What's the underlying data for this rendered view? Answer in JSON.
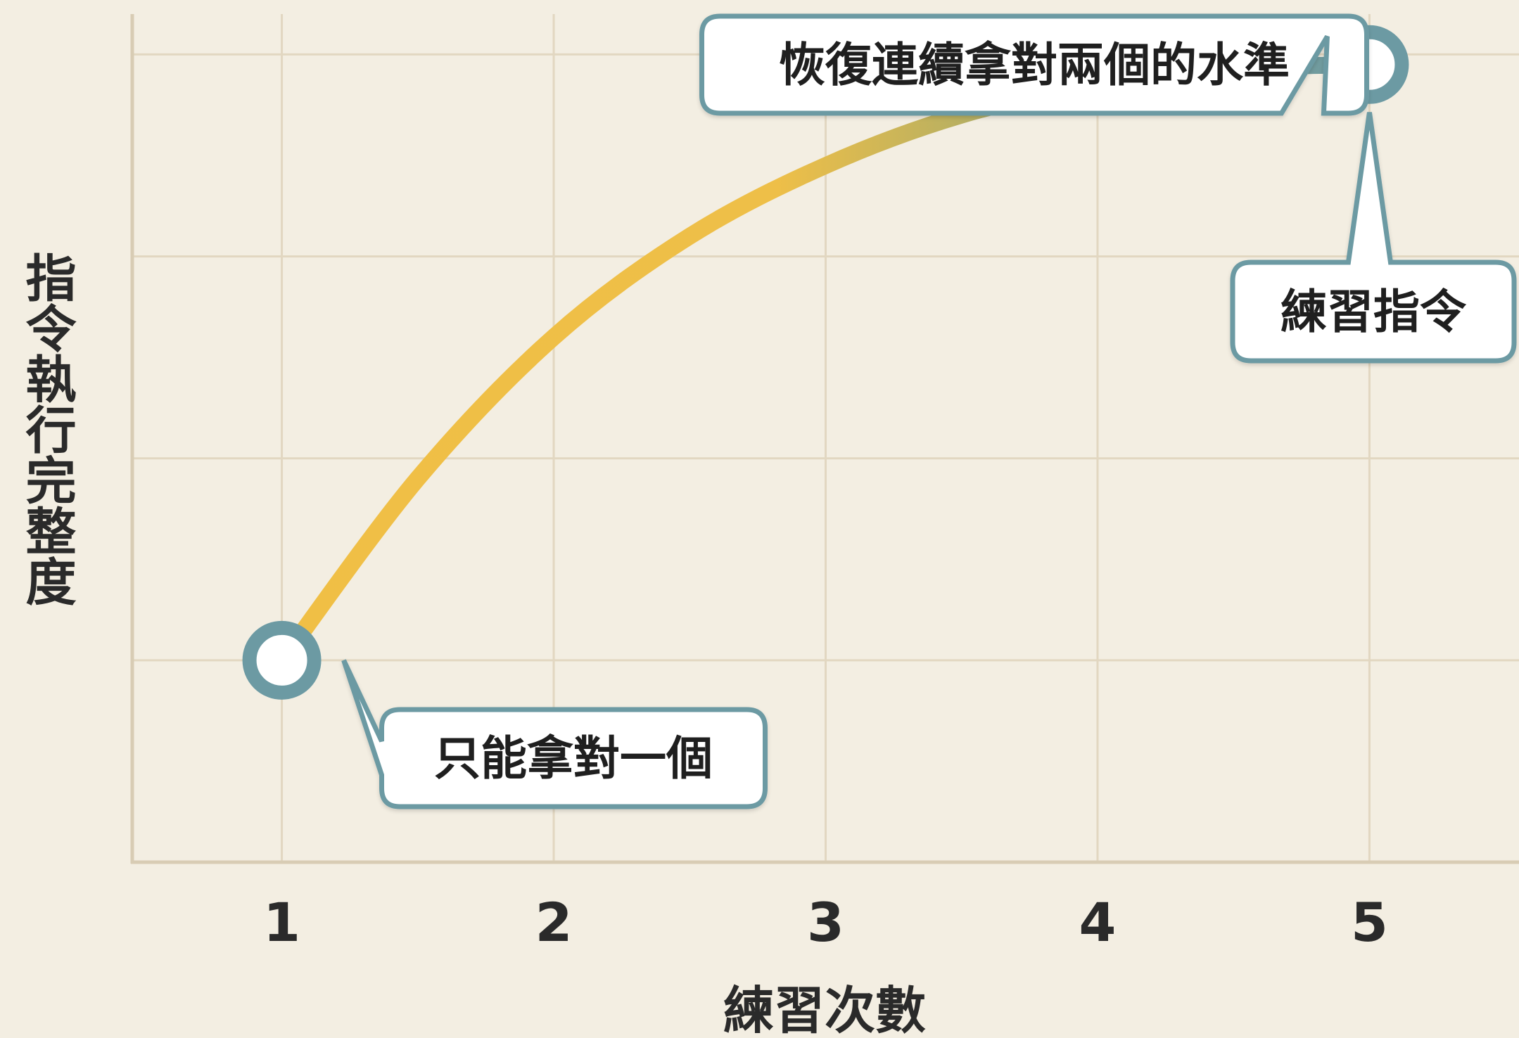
{
  "chart_data": {
    "type": "line",
    "xlabel": "練習次數",
    "ylabel": "指令執行完整度",
    "x": [
      1,
      2,
      3,
      4,
      5
    ],
    "xticks": [
      "1",
      "2",
      "3",
      "4",
      "5"
    ],
    "xlim": [
      0.45,
      5.55
    ],
    "ylim": [
      0,
      4.2
    ],
    "grid": true,
    "series": [
      {
        "x": [
          1,
          1.5,
          2,
          2.5,
          3,
          3.5,
          4,
          4.5,
          5
        ],
        "values": [
          1.0,
          1.9,
          2.6,
          3.1,
          3.45,
          3.7,
          3.85,
          3.93,
          3.95
        ]
      }
    ],
    "markers": [
      {
        "x": 1,
        "y": 1.0
      },
      {
        "x": 5,
        "y": 3.95
      }
    ],
    "annotations": [
      {
        "text": "只能拿對一個",
        "x": 1,
        "y": 1.0
      },
      {
        "text": "恢復連續拿對兩個的水準",
        "x": 5,
        "y": 3.95
      },
      {
        "text": "練習指令",
        "x": 5,
        "y": 3.95
      }
    ],
    "colors": {
      "curve_start": "#f0bf45",
      "curve_end": "#6c9aa3",
      "marker_ring": "#6c9aa3",
      "marker_fill": "#ffffff",
      "callout_border": "#6c9aa3",
      "grid": "#e2d7c1",
      "axis": "#d8ccb4",
      "background": "#f3eee2"
    }
  }
}
